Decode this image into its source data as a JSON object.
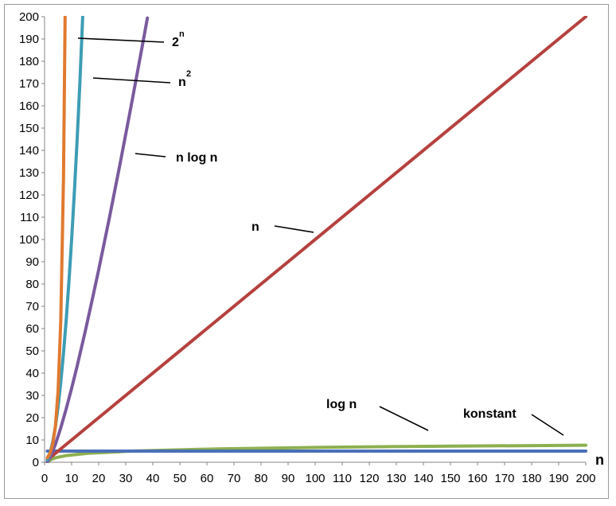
{
  "chart_data": {
    "type": "line",
    "title": "",
    "xlabel": "n",
    "ylabel": "",
    "xlim": [
      0,
      200
    ],
    "ylim": [
      0,
      200
    ],
    "x_ticks": [
      0,
      10,
      20,
      30,
      40,
      50,
      60,
      70,
      80,
      90,
      100,
      110,
      120,
      130,
      140,
      150,
      160,
      170,
      180,
      190,
      200
    ],
    "y_ticks": [
      0,
      10,
      20,
      30,
      40,
      50,
      60,
      70,
      80,
      90,
      100,
      110,
      120,
      130,
      140,
      150,
      160,
      170,
      180,
      190,
      200
    ],
    "grid": false,
    "legend": "none",
    "series": [
      {
        "label": "2",
        "label_superscript": "n",
        "color": "#e07a30",
        "x": [
          1,
          2,
          3,
          4,
          5,
          6,
          7,
          7.6
        ],
        "y": [
          2,
          4,
          8,
          16,
          32,
          64,
          128,
          200
        ]
      },
      {
        "label": "n",
        "label_superscript": "2",
        "color": "#3d9db5",
        "x": [
          1,
          2,
          3,
          4,
          5,
          6,
          7,
          8,
          9,
          10,
          11,
          12,
          13,
          14.1
        ],
        "y": [
          1,
          4,
          9,
          16,
          25,
          36,
          49,
          64,
          81,
          100,
          121,
          144,
          169,
          200
        ]
      },
      {
        "label": "n log n",
        "color": "#7a5a9e",
        "x": [
          1,
          2,
          4,
          6,
          8,
          10,
          12,
          15,
          18,
          20,
          24,
          28,
          32,
          36,
          38
        ],
        "y": [
          0,
          2,
          8,
          15.5,
          24,
          33.2,
          43,
          58.6,
          75.1,
          86.4,
          110,
          134.6,
          160,
          186.1,
          199.4
        ]
      },
      {
        "label": "n",
        "color": "#b5413e",
        "x": [
          1,
          200
        ],
        "y": [
          1,
          200
        ]
      },
      {
        "label": "log n",
        "color": "#8db050",
        "x": [
          1,
          2,
          4,
          8,
          16,
          32,
          64,
          100,
          128,
          150,
          200
        ],
        "y": [
          0,
          1,
          2,
          3,
          4,
          5,
          6,
          6.64,
          7,
          7.23,
          7.64
        ]
      },
      {
        "label": "konstant",
        "color": "#4a70b8",
        "x": [
          1,
          200
        ],
        "y": [
          5,
          5
        ]
      }
    ]
  },
  "annotations": [
    {
      "text": "2",
      "sup": "n",
      "series": 0
    },
    {
      "text": "n",
      "sup": "2",
      "series": 1
    },
    {
      "text": "n log n",
      "series": 2
    },
    {
      "text": "n",
      "series": 3
    },
    {
      "text": "log n",
      "series": 4
    },
    {
      "text": "konstant",
      "series": 5
    }
  ]
}
